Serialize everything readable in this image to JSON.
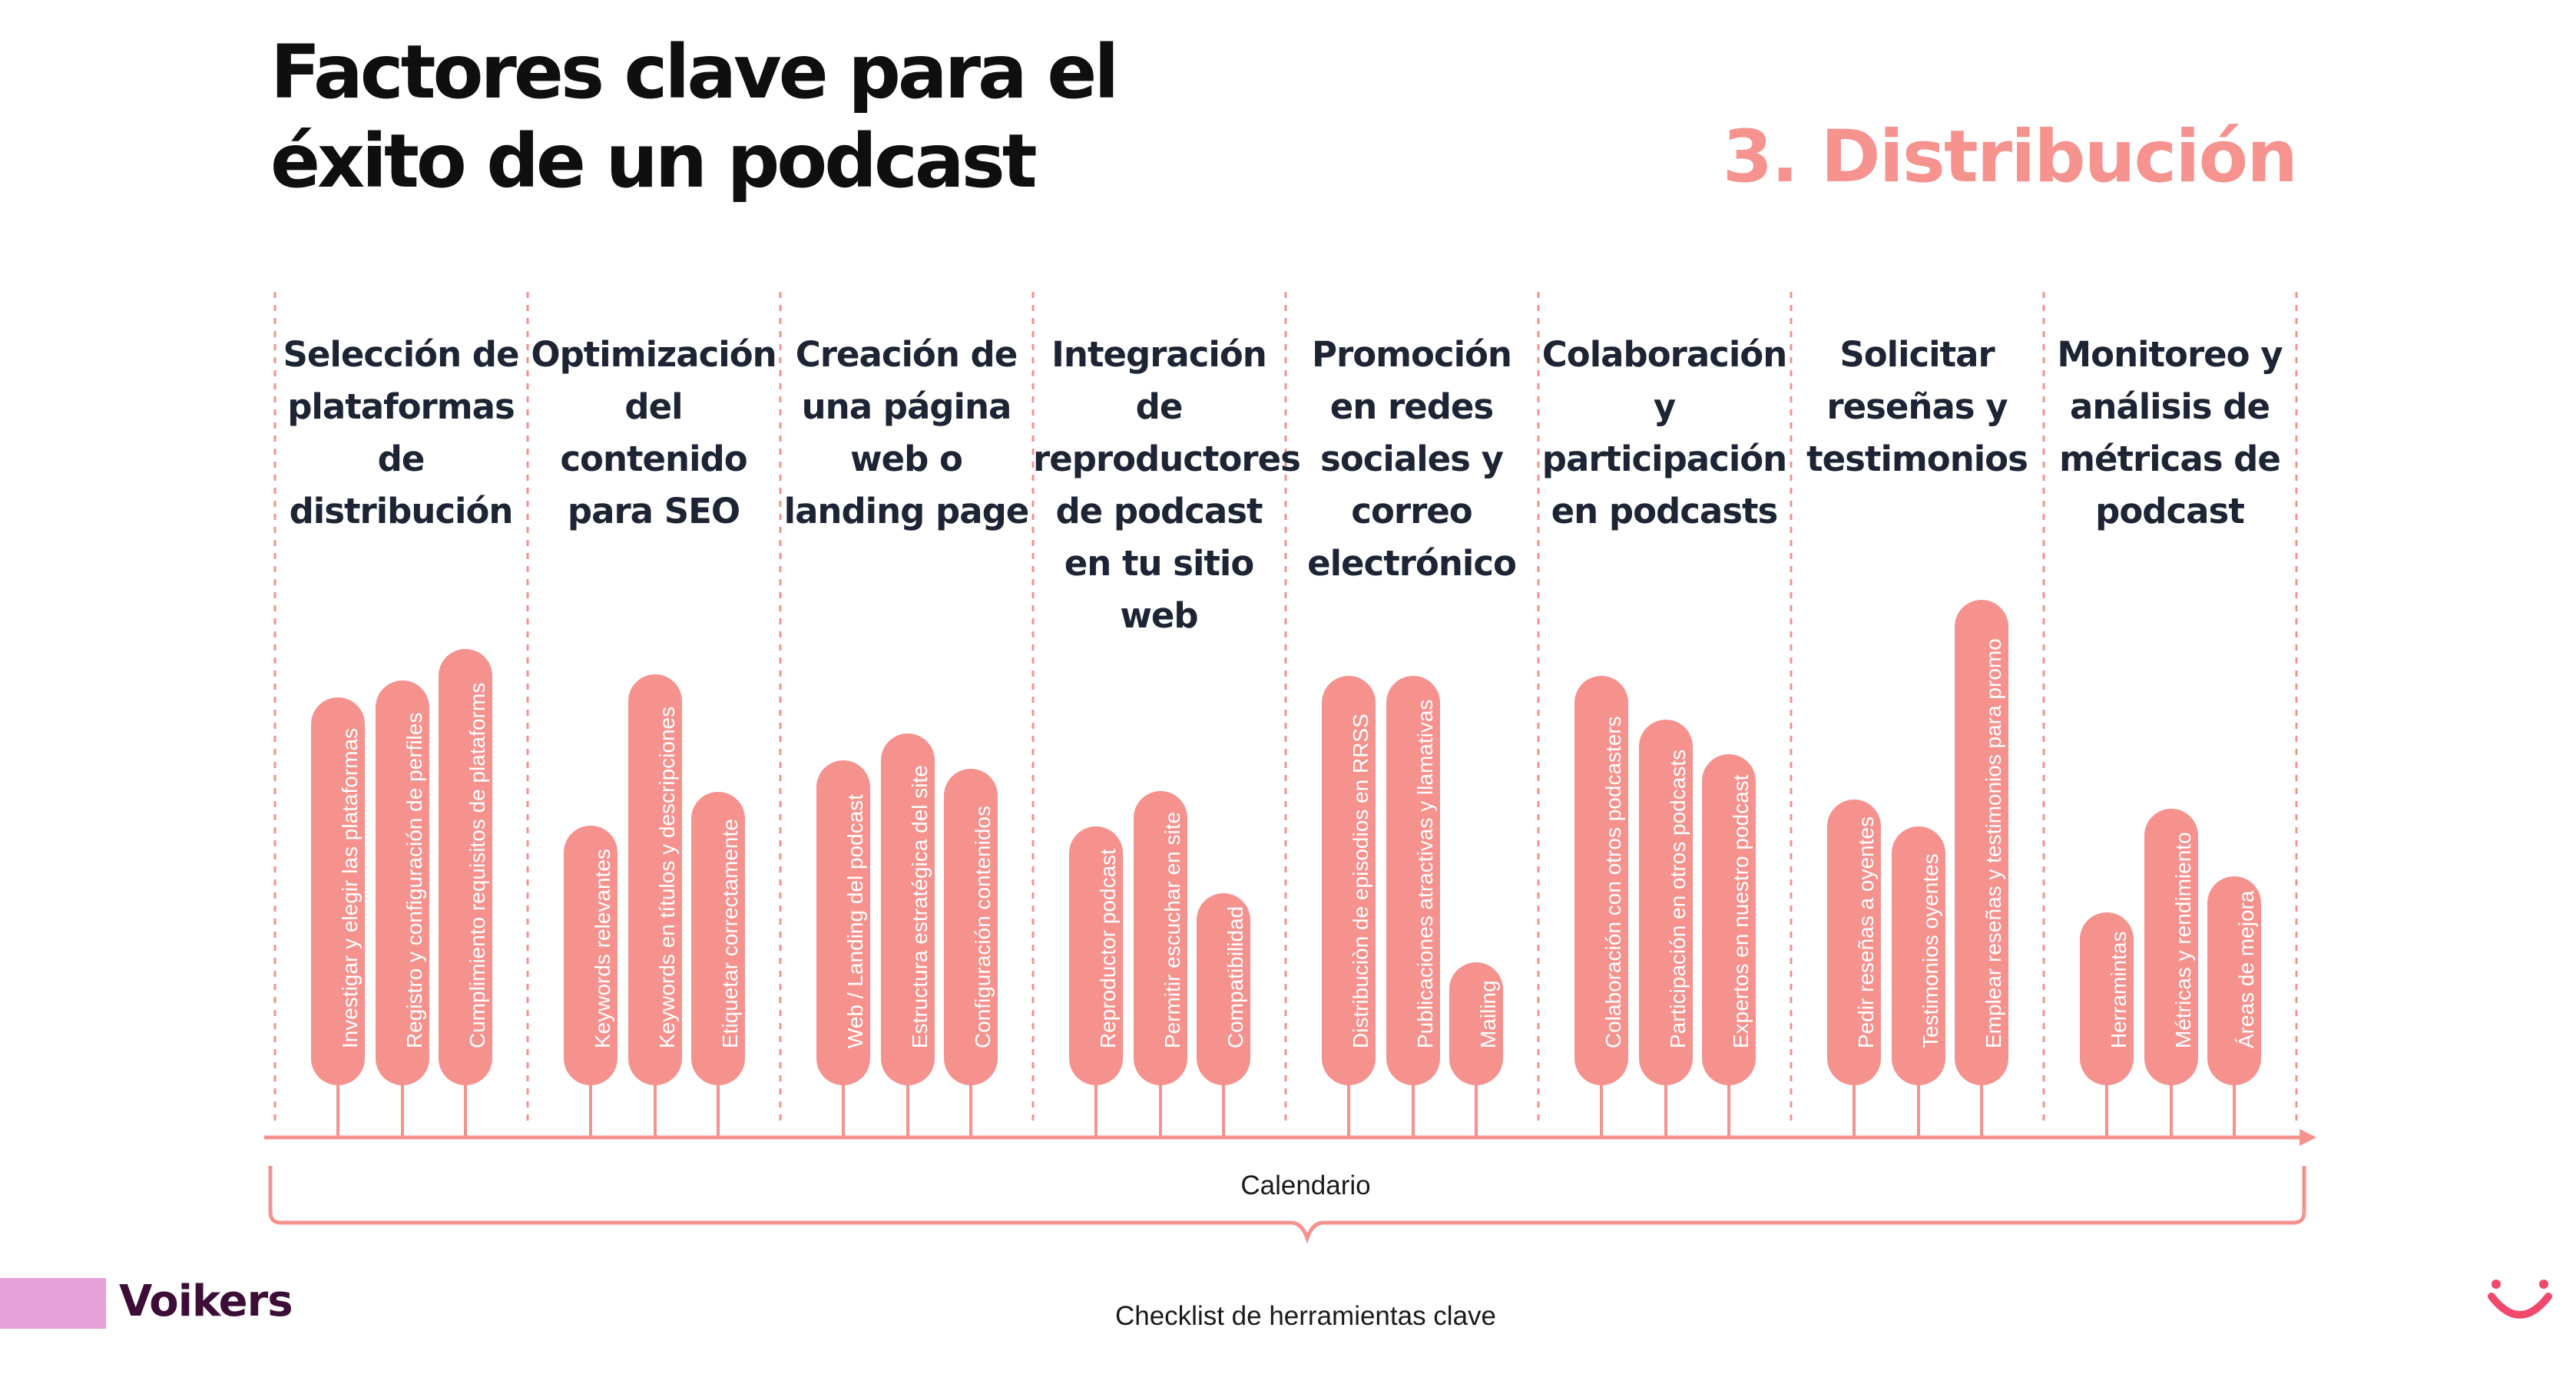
{
  "title_lines": [
    "Factores clave para el",
    "éxito de un podcast"
  ],
  "section_title": "3. Distribución",
  "columns": [
    {
      "title": "Selección de plataformas de distribución",
      "items": [
        {
          "label": "Investigar y elegir las plataformas"
        },
        {
          "label": "Registro y configuración de perfiles"
        },
        {
          "label": "Cumplimiento requisitos de plataforms"
        }
      ]
    },
    {
      "title": "Optimización del contenido para SEO",
      "items": [
        {
          "label": "Keywords relevantes"
        },
        {
          "label": "Keywords en títulos y descripciones"
        },
        {
          "label": "Etiquetar correctamente"
        }
      ]
    },
    {
      "title": "Creación de una página web o landing page",
      "items": [
        {
          "label": "Web / Landing del podcast"
        },
        {
          "label": "Estructura estratégica del site"
        },
        {
          "label": "Configuración contenidos"
        }
      ]
    },
    {
      "title": "Integración de reproductores de podcast en tu sitio web",
      "items": [
        {
          "label": "Reproductor podcast"
        },
        {
          "label": "Permitir escuchar en site"
        },
        {
          "label": "Compatibilidad"
        }
      ]
    },
    {
      "title": "Promoción en redes sociales y correo electrónico",
      "items": [
        {
          "label": "Distribuciòn de episodios en RRSS"
        },
        {
          "label": "Publicaciones atractivas y llamativas"
        },
        {
          "label": "Mailing"
        }
      ]
    },
    {
      "title": "Colaboración y participación en podcasts",
      "items": [
        {
          "label": "Colaboración con otros podcasters"
        },
        {
          "label": "Participación en otros podcasts"
        },
        {
          "label": "Expertos en nuestro podcast"
        }
      ]
    },
    {
      "title": "Solicitar reseñas y testimonios",
      "items": [
        {
          "label": "Pedir reseñas a oyentes"
        },
        {
          "label": "Testimonios oyentes"
        },
        {
          "label": "Emplear reseñas y testimonios para promo"
        }
      ]
    },
    {
      "title": "Monitoreo y análisis de métricas de podcast",
      "items": [
        {
          "label": "Herramintas"
        },
        {
          "label": "Métricas y rendimiento"
        },
        {
          "label": "Áreas de mejora"
        }
      ]
    }
  ],
  "timeline_label": "Calendario",
  "checklist_label": "Checklist de herramientas clave",
  "brand": "Voikers",
  "colors": {
    "accent": "#f5928e",
    "brand_bar": "#e5a1d8",
    "brand_text": "#3c0d37",
    "title": "#0f0f0f"
  },
  "icons": {
    "logo": "smile-icon"
  }
}
